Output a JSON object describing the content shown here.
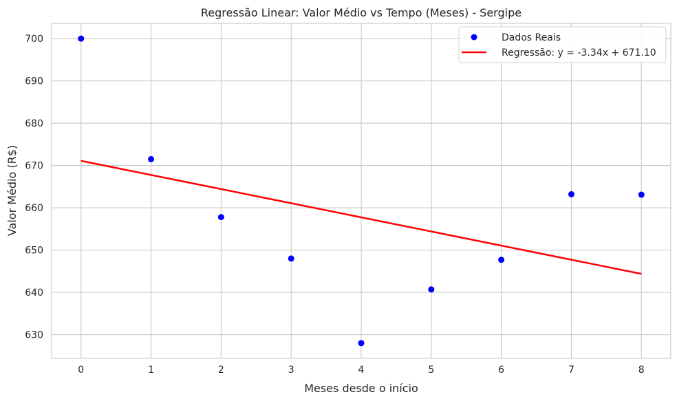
{
  "chart_data": {
    "type": "scatter",
    "title": "Regressão Linear: Valor Médio vs Tempo (Meses) - Sergipe",
    "xlabel": "Meses desde o início",
    "ylabel": "Valor Médio (R$)",
    "xlim": [
      -0.42,
      8.42
    ],
    "ylim": [
      624.4,
      703.6
    ],
    "xticks": [
      0,
      1,
      2,
      3,
      4,
      5,
      6,
      7,
      8
    ],
    "yticks": [
      630,
      640,
      650,
      660,
      670,
      680,
      690,
      700
    ],
    "grid": true,
    "legend_position": "top-right",
    "series": [
      {
        "name": "Dados Reais",
        "kind": "scatter",
        "color": "#0000ff",
        "x": [
          0,
          1,
          2,
          3,
          4,
          5,
          6,
          7,
          8
        ],
        "y": [
          700.0,
          671.5,
          657.8,
          648.0,
          628.0,
          640.7,
          647.7,
          663.2,
          663.1
        ]
      },
      {
        "name": "Regressão: y = -3.34x + 671.10",
        "kind": "line",
        "color": "#ff0000",
        "x": [
          0,
          8
        ],
        "y": [
          671.1,
          644.38
        ]
      }
    ]
  }
}
